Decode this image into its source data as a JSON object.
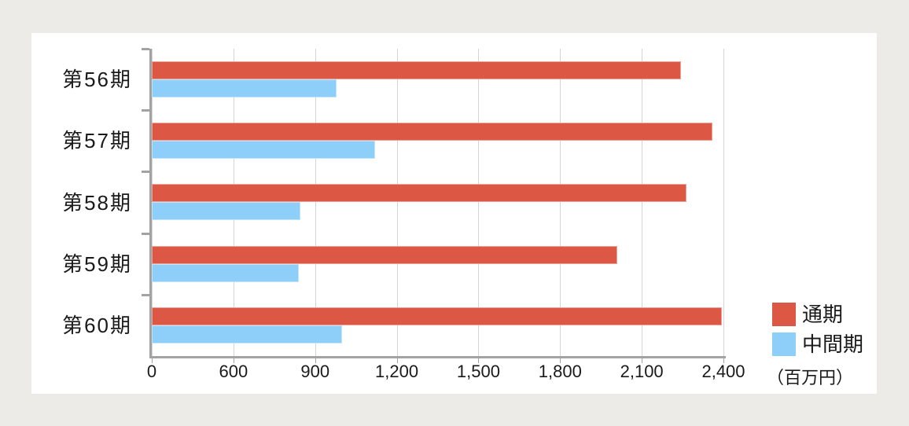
{
  "colors": {
    "page_background": "#edebe8",
    "card_background": "#ffffff",
    "gridline": "#d4d4d4",
    "axis": "#a3a3a3",
    "text": "#1a1a1a",
    "full_year_red": "#dd5745",
    "interim_blue": "#8dcff8"
  },
  "legend": {
    "full_year_label": "通期",
    "interim_label": "中間期"
  },
  "chart_data": {
    "type": "bar",
    "orientation": "horizontal",
    "title": "",
    "unit_label": "（百万円）",
    "categories": [
      "第56期",
      "第57期",
      "第58期",
      "第59期",
      "第60期"
    ],
    "series": [
      {
        "name": "通期",
        "color": "#dd5745",
        "values": [
          2245,
          2360,
          2265,
          2010,
          2395
        ]
      },
      {
        "name": "中間期",
        "color": "#8dcff8",
        "values": [
          980,
          1120,
          845,
          840,
          1000
        ]
      }
    ],
    "x_axis": {
      "tick_labels": [
        "0",
        "600",
        "900",
        "1,200",
        "1,500",
        "1,800",
        "2,100",
        "2,400"
      ],
      "tick_values": [
        0,
        600,
        900,
        1200,
        1500,
        1800,
        2100,
        2400
      ],
      "note": "ticks evenly spaced as displayed"
    },
    "grid": true,
    "legend_position": "bottom-right"
  }
}
